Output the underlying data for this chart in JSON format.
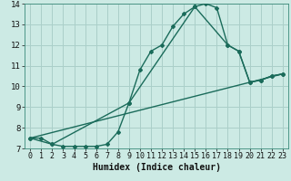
{
  "background_color": "#cceae4",
  "grid_color": "#aacfc9",
  "line_color": "#1a6b5a",
  "xlim": [
    -0.5,
    23.5
  ],
  "ylim": [
    7,
    14
  ],
  "xticks": [
    0,
    1,
    2,
    3,
    4,
    5,
    6,
    7,
    8,
    9,
    10,
    11,
    12,
    13,
    14,
    15,
    16,
    17,
    18,
    19,
    20,
    21,
    22,
    23
  ],
  "yticks": [
    7,
    8,
    9,
    10,
    11,
    12,
    13,
    14
  ],
  "xlabel": "Humidex (Indice chaleur)",
  "line1_x": [
    0,
    1,
    2,
    3,
    4,
    5,
    6,
    7,
    8,
    9,
    10,
    11,
    12,
    13,
    14,
    15,
    16,
    17,
    18,
    19,
    20,
    21,
    22,
    23
  ],
  "line1_y": [
    7.5,
    7.5,
    7.2,
    7.1,
    7.1,
    7.1,
    7.1,
    7.2,
    7.8,
    9.2,
    10.8,
    11.7,
    12.0,
    12.9,
    13.5,
    13.85,
    14.0,
    13.8,
    12.0,
    11.7,
    10.2,
    10.3,
    10.5,
    10.6
  ],
  "line2_x": [
    0,
    2,
    9,
    15,
    18,
    19,
    20,
    21,
    22,
    23
  ],
  "line2_y": [
    7.5,
    7.2,
    9.2,
    13.85,
    12.0,
    11.7,
    10.2,
    10.3,
    10.5,
    10.6
  ],
  "line3_x": [
    0,
    23
  ],
  "line3_y": [
    7.5,
    10.6
  ],
  "tick_fontsize": 6,
  "xlabel_fontsize": 7
}
